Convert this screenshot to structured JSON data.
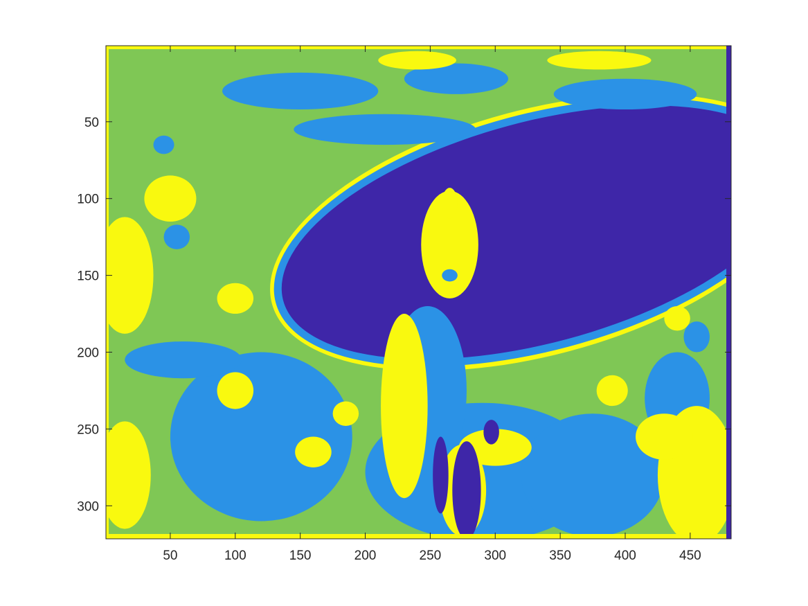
{
  "chart_data": {
    "type": "heatmap",
    "title": "",
    "xlabel": "",
    "ylabel": "",
    "xlim": [
      0.5,
      481.5
    ],
    "ylim": [
      0.5,
      321.5
    ],
    "y_reversed": true,
    "x_ticks": [
      50,
      100,
      150,
      200,
      250,
      300,
      350,
      400,
      450
    ],
    "y_ticks": [
      50,
      100,
      150,
      200,
      250,
      300
    ],
    "x_tick_labels": [
      "50",
      "100",
      "150",
      "200",
      "250",
      "300",
      "350",
      "400",
      "450"
    ],
    "y_tick_labels": [
      "50",
      "100",
      "150",
      "200",
      "250",
      "300"
    ],
    "grid": false,
    "legend": "none",
    "colormap": {
      "levels": [
        1,
        2,
        3,
        4
      ],
      "colors": [
        "#3e26a8",
        "#2b92e6",
        "#7fc755",
        "#f9f90f"
      ]
    },
    "background_level": 3,
    "regions": [
      {
        "level": 4,
        "shape": "ellipse",
        "cx": 333,
        "cy": 122,
        "rx": 212,
        "ry": 80,
        "rotation": -15
      },
      {
        "level": 2,
        "shape": "ellipse",
        "cx": 333,
        "cy": 122,
        "rx": 209,
        "ry": 77,
        "rotation": -15
      },
      {
        "level": 1,
        "shape": "ellipse",
        "cx": 333,
        "cy": 122,
        "rx": 203,
        "ry": 72,
        "rotation": -15
      },
      {
        "level": 2,
        "shape": "ellipse",
        "cx": 290,
        "cy": 278,
        "rx": 90,
        "ry": 45,
        "rotation": 0
      },
      {
        "level": 2,
        "shape": "ellipse",
        "cx": 120,
        "cy": 255,
        "rx": 70,
        "ry": 55,
        "rotation": 0
      },
      {
        "level": 2,
        "shape": "ellipse",
        "cx": 375,
        "cy": 280,
        "rx": 55,
        "ry": 40,
        "rotation": 0
      },
      {
        "level": 2,
        "shape": "ellipse",
        "cx": 150,
        "cy": 30,
        "rx": 60,
        "ry": 12,
        "rotation": 0
      },
      {
        "level": 2,
        "shape": "ellipse",
        "cx": 270,
        "cy": 22,
        "rx": 40,
        "ry": 10,
        "rotation": 0
      },
      {
        "level": 2,
        "shape": "ellipse",
        "cx": 215,
        "cy": 55,
        "rx": 70,
        "ry": 10,
        "rotation": 0
      },
      {
        "level": 2,
        "shape": "ellipse",
        "cx": 400,
        "cy": 32,
        "rx": 55,
        "ry": 10,
        "rotation": 0
      },
      {
        "level": 2,
        "shape": "ellipse",
        "cx": 60,
        "cy": 205,
        "rx": 45,
        "ry": 12,
        "rotation": 0
      },
      {
        "level": 2,
        "shape": "ellipse",
        "cx": 440,
        "cy": 230,
        "rx": 25,
        "ry": 30,
        "rotation": 0
      },
      {
        "level": 2,
        "shape": "ellipse",
        "cx": 248,
        "cy": 225,
        "rx": 30,
        "ry": 55,
        "rotation": 0
      },
      {
        "level": 4,
        "shape": "ellipse",
        "cx": 15,
        "cy": 150,
        "rx": 22,
        "ry": 38,
        "rotation": 0
      },
      {
        "level": 4,
        "shape": "ellipse",
        "cx": 15,
        "cy": 280,
        "rx": 20,
        "ry": 35,
        "rotation": 0
      },
      {
        "level": 4,
        "shape": "ellipse",
        "cx": 455,
        "cy": 280,
        "rx": 30,
        "ry": 45,
        "rotation": 0
      },
      {
        "level": 4,
        "shape": "ellipse",
        "cx": 430,
        "cy": 255,
        "rx": 22,
        "ry": 15,
        "rotation": 0
      },
      {
        "level": 4,
        "shape": "ellipse",
        "cx": 50,
        "cy": 100,
        "rx": 20,
        "ry": 15,
        "rotation": 0
      },
      {
        "level": 4,
        "shape": "ellipse",
        "cx": 100,
        "cy": 165,
        "rx": 14,
        "ry": 10,
        "rotation": 0
      },
      {
        "level": 4,
        "shape": "ellipse",
        "cx": 100,
        "cy": 225,
        "rx": 14,
        "ry": 12,
        "rotation": 0
      },
      {
        "level": 4,
        "shape": "ellipse",
        "cx": 160,
        "cy": 265,
        "rx": 14,
        "ry": 10,
        "rotation": 0
      },
      {
        "level": 4,
        "shape": "ellipse",
        "cx": 185,
        "cy": 240,
        "rx": 10,
        "ry": 8,
        "rotation": 0
      },
      {
        "level": 4,
        "shape": "ellipse",
        "cx": 390,
        "cy": 225,
        "rx": 12,
        "ry": 10,
        "rotation": 0
      },
      {
        "level": 4,
        "shape": "ellipse",
        "cx": 440,
        "cy": 178,
        "rx": 10,
        "ry": 8,
        "rotation": 0
      },
      {
        "level": 4,
        "shape": "ellipse",
        "cx": 240,
        "cy": 10,
        "rx": 30,
        "ry": 6,
        "rotation": 0
      },
      {
        "level": 4,
        "shape": "ellipse",
        "cx": 380,
        "cy": 10,
        "rx": 40,
        "ry": 6,
        "rotation": 0
      },
      {
        "level": 4,
        "shape": "ellipse",
        "cx": 230,
        "cy": 235,
        "rx": 18,
        "ry": 60,
        "rotation": 0
      },
      {
        "level": 4,
        "shape": "ellipse",
        "cx": 265,
        "cy": 130,
        "rx": 22,
        "ry": 35,
        "rotation": 0
      },
      {
        "level": 4,
        "shape": "ellipse",
        "cx": 265,
        "cy": 103,
        "rx": 6,
        "ry": 10,
        "rotation": 0
      },
      {
        "level": 4,
        "shape": "ellipse",
        "cx": 300,
        "cy": 262,
        "rx": 28,
        "ry": 12,
        "rotation": 0
      },
      {
        "level": 4,
        "shape": "ellipse",
        "cx": 275,
        "cy": 290,
        "rx": 18,
        "ry": 30,
        "rotation": 0
      },
      {
        "level": 1,
        "shape": "ellipse",
        "cx": 278,
        "cy": 290,
        "rx": 11,
        "ry": 32,
        "rotation": 0
      },
      {
        "level": 1,
        "shape": "ellipse",
        "cx": 258,
        "cy": 280,
        "rx": 6,
        "ry": 25,
        "rotation": 0
      },
      {
        "level": 1,
        "shape": "ellipse",
        "cx": 297,
        "cy": 252,
        "rx": 6,
        "ry": 8,
        "rotation": 0
      },
      {
        "level": 2,
        "shape": "ellipse",
        "cx": 265,
        "cy": 150,
        "rx": 6,
        "ry": 4,
        "rotation": 0
      },
      {
        "level": 2,
        "shape": "ellipse",
        "cx": 45,
        "cy": 65,
        "rx": 8,
        "ry": 6,
        "rotation": 0
      },
      {
        "level": 2,
        "shape": "ellipse",
        "cx": 55,
        "cy": 125,
        "rx": 10,
        "ry": 8,
        "rotation": 0
      },
      {
        "level": 2,
        "shape": "ellipse",
        "cx": 455,
        "cy": 190,
        "rx": 10,
        "ry": 10,
        "rotation": 0
      }
    ]
  }
}
